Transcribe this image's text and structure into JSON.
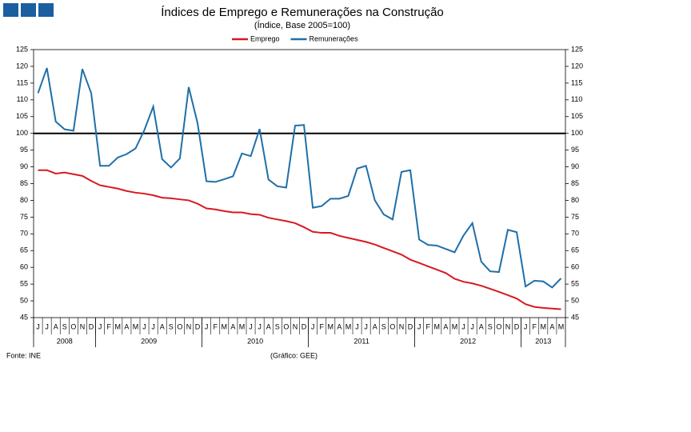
{
  "chart_data": {
    "type": "line",
    "title": "Índices de Emprego e Remunerações na Construção",
    "subtitle": "(Índice, Base 2005=100)",
    "categories": [
      "J",
      "J",
      "A",
      "S",
      "O",
      "N",
      "D",
      "J",
      "F",
      "M",
      "A",
      "M",
      "J",
      "J",
      "A",
      "S",
      "O",
      "N",
      "D",
      "J",
      "F",
      "M",
      "A",
      "M",
      "J",
      "J",
      "A",
      "S",
      "O",
      "N",
      "D",
      "J",
      "F",
      "M",
      "A",
      "M",
      "J",
      "J",
      "A",
      "S",
      "O",
      "N",
      "D",
      "J",
      "F",
      "M",
      "A",
      "M",
      "J",
      "J",
      "A",
      "S",
      "O",
      "N",
      "D",
      "J",
      "F",
      "M",
      "A",
      "M"
    ],
    "x_groups": [
      {
        "label": "2008",
        "count": 7
      },
      {
        "label": "2009",
        "count": 12
      },
      {
        "label": "2010",
        "count": 12
      },
      {
        "label": "2011",
        "count": 12
      },
      {
        "label": "2012",
        "count": 12
      },
      {
        "label": "2013",
        "count": 5
      }
    ],
    "series": [
      {
        "name": "Emprego",
        "color": "#d71920",
        "values": [
          89,
          89,
          88,
          88.3,
          87.8,
          87.3,
          85.8,
          84.5,
          84,
          83.5,
          82.8,
          82.3,
          82,
          81.5,
          80.8,
          80.6,
          80.3,
          80,
          79,
          77.6,
          77.3,
          76.8,
          76.4,
          76.4,
          75.9,
          75.7,
          74.8,
          74.3,
          73.8,
          73.2,
          72,
          70.6,
          70.3,
          70.3,
          69.4,
          68.8,
          68.2,
          67.6,
          66.8,
          65.8,
          64.8,
          63.8,
          62.3,
          61.3,
          60.3,
          59.3,
          58.3,
          56.6,
          55.7,
          55.2,
          54.5,
          53.6,
          52.7,
          51.7,
          50.7,
          49,
          48.2,
          47.9,
          47.7,
          47.5
        ]
      },
      {
        "name": "Remunerações",
        "color": "#1f6fa8",
        "values": [
          112,
          119.5,
          103.5,
          101.2,
          100.8,
          119.2,
          112,
          90.3,
          90.3,
          92.8,
          93.8,
          95.5,
          101,
          108,
          92.3,
          89.8,
          92.5,
          113.8,
          103,
          85.7,
          85.5,
          86.3,
          87.2,
          94,
          93.2,
          101.3,
          86.2,
          84.2,
          83.8,
          102.3,
          102.5,
          77.8,
          78.3,
          80.5,
          80.5,
          81.3,
          89.5,
          90.3,
          80,
          75.8,
          74.3,
          88.5,
          89,
          68.3,
          66.7,
          66.5,
          65.5,
          64.5,
          69.5,
          73.2,
          61.7,
          58.8,
          58.6,
          71.2,
          70.5,
          54.3,
          56,
          55.8,
          54,
          56.7
        ]
      }
    ],
    "reference_line": {
      "value": 100,
      "color": "#000000"
    },
    "ylim": [
      45,
      125
    ],
    "yticks": [
      45,
      50,
      55,
      60,
      65,
      70,
      75,
      80,
      85,
      90,
      95,
      100,
      105,
      110,
      115,
      120,
      125
    ],
    "y2lim": [
      45,
      125
    ],
    "y2ticks": [
      45,
      50,
      55,
      60,
      65,
      70,
      75,
      80,
      85,
      90,
      95,
      100,
      105,
      110,
      115,
      120,
      125
    ],
    "legend": "top",
    "source": "Fonte: INE",
    "credit": "(Gráfico: GEE)"
  }
}
